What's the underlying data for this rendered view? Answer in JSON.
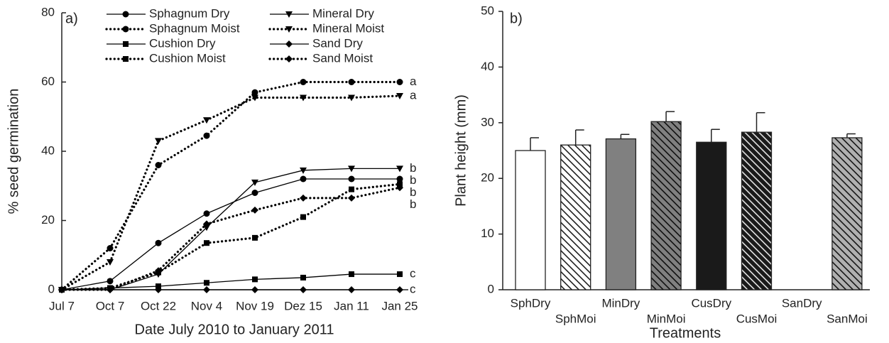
{
  "chart_data": [
    {
      "type": "line",
      "panel_label": "a)",
      "x_label": "Date July 2010  to January 2011",
      "y_label": "% seed germination",
      "categories": [
        "Jul 7",
        "Oct 7",
        "Oct 22",
        "Nov 4",
        "Nov 19",
        "Dez 15",
        "Jan 11",
        "Jan 25"
      ],
      "ylim": [
        0,
        80
      ],
      "yticks": [
        0,
        20,
        40,
        60,
        80
      ],
      "legend": "top",
      "series": [
        {
          "name": "Sphagnum Dry",
          "color": "#000000",
          "line_style": "solid",
          "marker": "circle",
          "values": [
            0,
            2.5,
            13.5,
            22,
            28,
            32,
            32,
            32
          ],
          "letter": "b"
        },
        {
          "name": "Sphagnum Moist",
          "color": "#000000",
          "line_style": "dotted",
          "marker": "circle",
          "values": [
            0,
            12,
            36,
            44.5,
            57,
            60,
            60,
            60
          ],
          "letter": "a"
        },
        {
          "name": "Cushion Dry",
          "color": "#000000",
          "line_style": "solid",
          "marker": "square",
          "values": [
            0,
            0.5,
            1,
            2,
            3,
            3.5,
            4.5,
            4.5
          ],
          "letter": "c"
        },
        {
          "name": "Cushion Moist",
          "color": "#000000",
          "line_style": "dotted",
          "marker": "square",
          "values": [
            0,
            0.5,
            5,
            13.5,
            15,
            21,
            29,
            30.5
          ],
          "letter": "b"
        },
        {
          "name": "Mineral Dry",
          "color": "#000000",
          "line_style": "solid",
          "marker": "triangle-down",
          "values": [
            0,
            0,
            4.5,
            18,
            31,
            34.5,
            35,
            35
          ],
          "letter": "b"
        },
        {
          "name": "Mineral Moist",
          "color": "#000000",
          "line_style": "dotted",
          "marker": "triangle-down",
          "values": [
            0,
            8,
            43,
            49,
            55.5,
            55.5,
            55.5,
            56
          ],
          "letter": "a"
        },
        {
          "name": "Sand Dry",
          "color": "#000000",
          "line_style": "solid",
          "marker": "diamond",
          "values": [
            0,
            0,
            0,
            0,
            0,
            0,
            0,
            0
          ],
          "letter": "c"
        },
        {
          "name": "Sand Moist",
          "color": "#000000",
          "line_style": "dotted",
          "marker": "diamond",
          "values": [
            0,
            0,
            5.5,
            19,
            23,
            26.5,
            26.5,
            29.5
          ],
          "letter": "b"
        }
      ]
    },
    {
      "type": "bar",
      "panel_label": "b)",
      "x_label": "Treatments",
      "y_label": "Plant height (mm)",
      "categories": [
        "SphDry",
        "SphMoi",
        "MinDry",
        "MinMoi",
        "CusDry",
        "CusMoi",
        "SanDry",
        "SanMoi"
      ],
      "values": [
        25,
        26,
        27.1,
        30.2,
        26.5,
        28.3,
        null,
        27.3
      ],
      "errors": [
        2.3,
        2.7,
        0.8,
        1.8,
        2.3,
        3.5,
        null,
        0.7
      ],
      "colors": [
        "#ffffff",
        "#ffffff",
        "#808080",
        "#808080",
        "#1a1a1a",
        "#1a1a1a",
        "#ffffff",
        "#b0b0b0"
      ],
      "hatch": [
        false,
        true,
        false,
        true,
        false,
        true,
        false,
        true
      ],
      "ylim": [
        0,
        50
      ],
      "yticks": [
        0,
        10,
        20,
        30,
        40,
        50
      ]
    }
  ]
}
